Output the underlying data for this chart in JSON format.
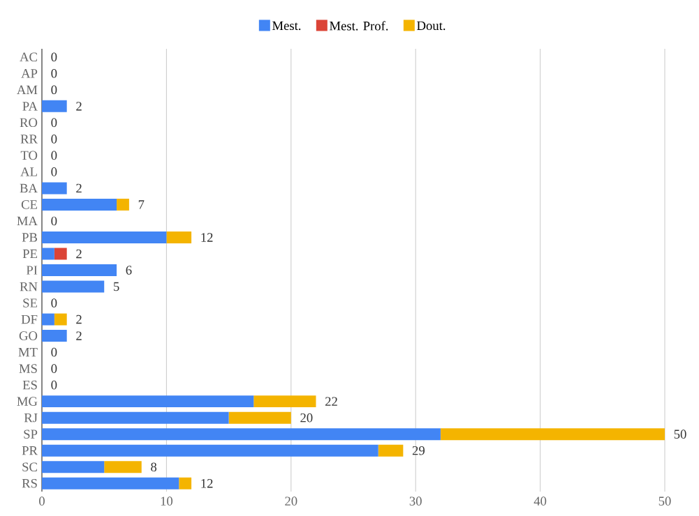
{
  "chart_data": {
    "type": "bar",
    "orientation": "horizontal",
    "stacked": true,
    "categories": [
      "AC",
      "AP",
      "AM",
      "PA",
      "RO",
      "RR",
      "TO",
      "AL",
      "BA",
      "CE",
      "MA",
      "PB",
      "PE",
      "PI",
      "RN",
      "SE",
      "DF",
      "GO",
      "MT",
      "MS",
      "ES",
      "MG",
      "RJ",
      "SP",
      "PR",
      "SC",
      "RS"
    ],
    "series": [
      {
        "name": "Mest.",
        "color": "#4285f4",
        "values": [
          0,
          0,
          0,
          2,
          0,
          0,
          0,
          0,
          2,
          6,
          0,
          10,
          1,
          6,
          5,
          0,
          1,
          2,
          0,
          0,
          0,
          17,
          15,
          32,
          27,
          5,
          11
        ]
      },
      {
        "name": "Mest. Prof.",
        "color": "#db4437",
        "values": [
          0,
          0,
          0,
          0,
          0,
          0,
          0,
          0,
          0,
          0,
          0,
          0,
          1,
          0,
          0,
          0,
          0,
          0,
          0,
          0,
          0,
          0,
          0,
          0,
          0,
          0,
          0
        ]
      },
      {
        "name": "Dout.",
        "color": "#f4b400",
        "values": [
          0,
          0,
          0,
          0,
          0,
          0,
          0,
          0,
          0,
          1,
          0,
          2,
          0,
          0,
          0,
          0,
          1,
          0,
          0,
          0,
          0,
          5,
          5,
          18,
          2,
          3,
          1
        ]
      }
    ],
    "totals": [
      "0",
      "0",
      "0",
      "2",
      "0",
      "0",
      "0",
      "0",
      "2",
      "7",
      "0",
      "12",
      "2",
      "6",
      "5",
      "0",
      "2",
      "2",
      "0",
      "0",
      "0",
      "22",
      "20",
      "50",
      "29",
      "8",
      "12"
    ],
    "xlim": [
      0,
      50
    ],
    "xticks": [
      0,
      10,
      20,
      30,
      40,
      50
    ],
    "grid": "x",
    "legend": "top"
  }
}
